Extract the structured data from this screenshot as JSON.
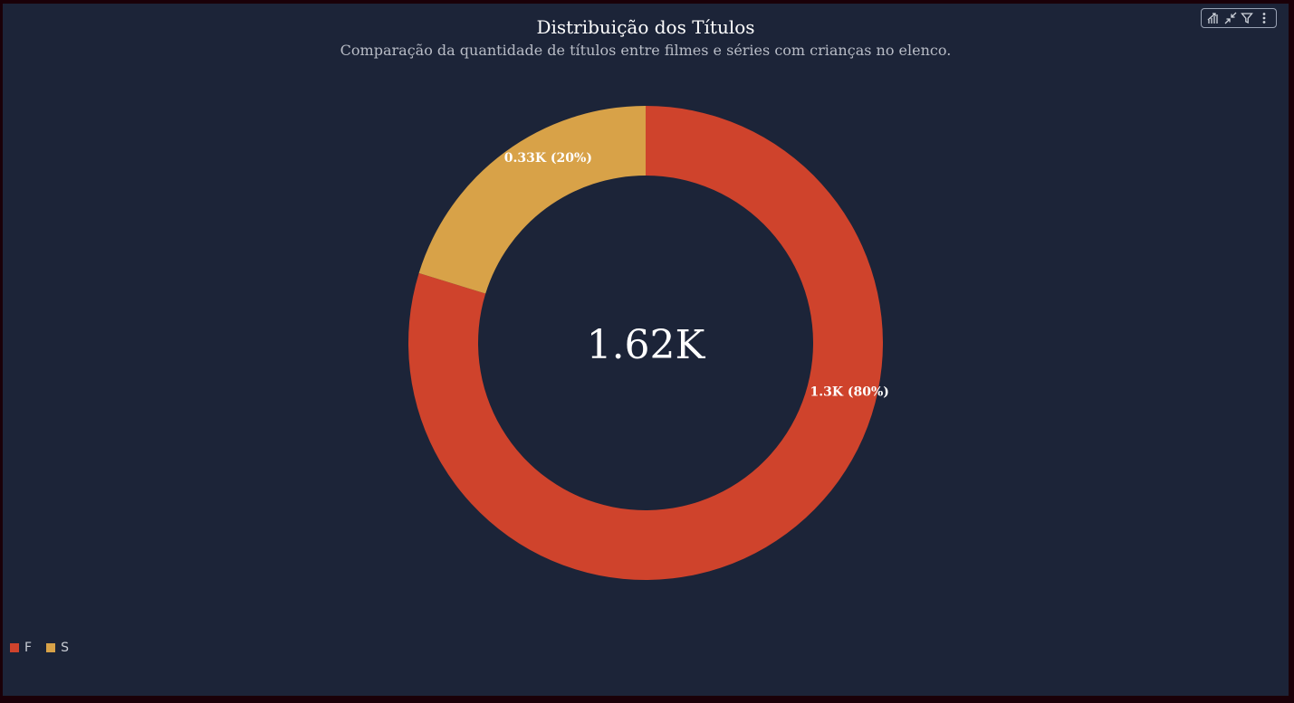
{
  "title": "Distribuição dos Títulos",
  "subtitle": "Comparação da quantidade de títulos entre filmes e séries com crianças no elenco.",
  "toolbar": {
    "icons": [
      "bar-chart-drill-icon",
      "collapse-arrows-icon",
      "filter-icon",
      "more-options-icon"
    ]
  },
  "chart_data": {
    "type": "pie",
    "variant": "donut",
    "center_label": "1.62K",
    "start_angle_deg": 0,
    "direction": "clockwise",
    "slices": [
      {
        "name": "F",
        "value": 1300,
        "label": "1.3K (80%)",
        "percent": 80,
        "color": "#cf432c"
      },
      {
        "name": "S",
        "value": 330,
        "label": "0.33K (20%)",
        "percent": 20,
        "color": "#d8a248"
      }
    ],
    "legend_position": "bottom-left"
  },
  "legend": {
    "items": [
      {
        "label": "F",
        "color": "#cf432c"
      },
      {
        "label": "S",
        "color": "#d8a248"
      }
    ]
  },
  "colors": {
    "background": "#1c2438",
    "outer_border": "#1a0008",
    "text": "#ffffff",
    "subtitle_text": "#b8bcc6"
  }
}
